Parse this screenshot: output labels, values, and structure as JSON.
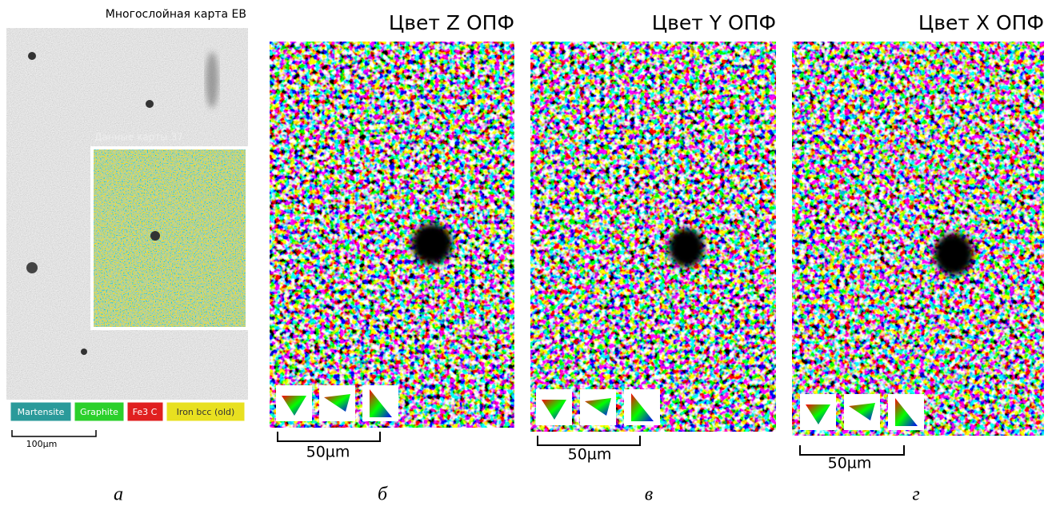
{
  "panels": [
    {
      "label": "а",
      "title": "Многослойная карта EB",
      "inset_title": "Данные карты 37",
      "legend": [
        "Martensite",
        "Graphite",
        "Fe3 C",
        "Iron bcc (old)"
      ],
      "scale_bar": "100µm"
    },
    {
      "label": "б",
      "title": "Цвет Z ОПФ",
      "scale_bar": "50µm"
    },
    {
      "label": "в",
      "title": "Цвет Y ОПФ",
      "scale_bar": "50µm"
    },
    {
      "label": "г",
      "title": "Цвет X ОПФ",
      "scale_bar": "50µm"
    }
  ]
}
